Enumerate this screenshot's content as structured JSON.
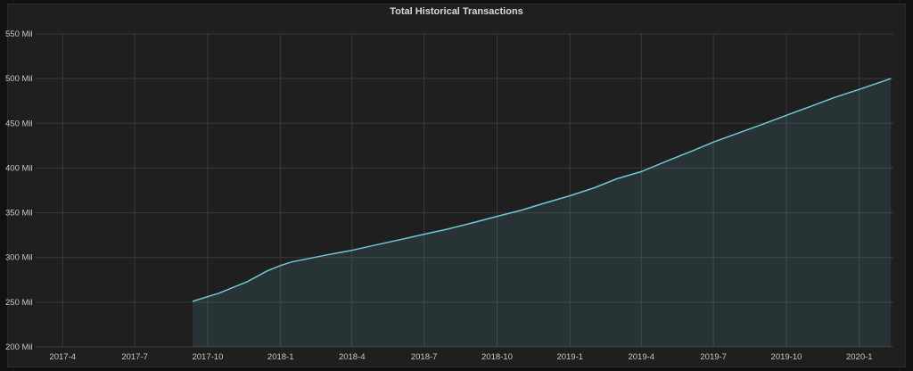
{
  "chart_data": {
    "type": "area",
    "title": "Total Historical Transactions",
    "x_ticks": [
      "2017-4",
      "2017-7",
      "2017-10",
      "2018-1",
      "2018-4",
      "2018-7",
      "2018-10",
      "2019-1",
      "2019-4",
      "2019-7",
      "2019-10",
      "2020-1"
    ],
    "y_ticks": [
      "200 Mil",
      "250 Mil",
      "300 Mil",
      "350 Mil",
      "400 Mil",
      "450 Mil",
      "500 Mil",
      "550 Mil"
    ],
    "ylim": [
      200,
      550
    ],
    "y_unit": "Mil",
    "grid": true,
    "series": [
      {
        "x": [
          "2017-09-12",
          "2017-10-15",
          "2017-11-20",
          "2017-12-15",
          "2018-01-01",
          "2018-01-15",
          "2018-02-01",
          "2018-03-01",
          "2018-04-01",
          "2018-05-01",
          "2018-06-01",
          "2018-07-01",
          "2018-08-01",
          "2018-09-01",
          "2018-10-01",
          "2018-11-01",
          "2018-12-01",
          "2019-01-01",
          "2019-02-01",
          "2019-03-01",
          "2019-04-01",
          "2019-05-01",
          "2019-06-01",
          "2019-07-01",
          "2019-08-01",
          "2019-09-01",
          "2019-10-01",
          "2019-11-01",
          "2019-12-01",
          "2020-01-01",
          "2020-02-10"
        ],
        "y": [
          251,
          260,
          273,
          285,
          291,
          295,
          298,
          303,
          308,
          314,
          320,
          326,
          332,
          339,
          346,
          353,
          361,
          369,
          378,
          388,
          396,
          407,
          418,
          429,
          439,
          449,
          459,
          469,
          479,
          488,
          500
        ],
        "color": "#6fc8d7"
      }
    ]
  }
}
